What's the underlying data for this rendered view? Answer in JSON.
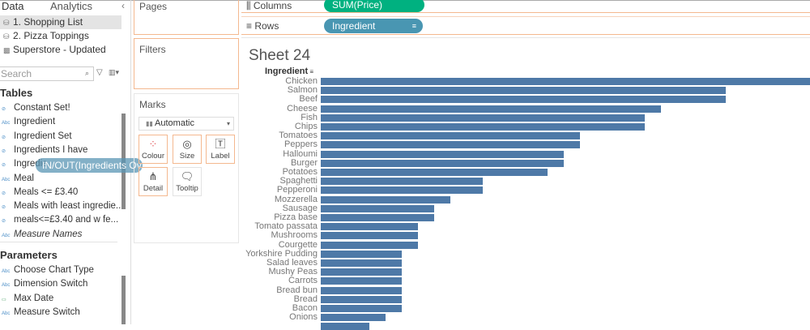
{
  "tabs": {
    "data": "Data",
    "analytics": "Analytics"
  },
  "datasources": [
    {
      "label": "1. Shopping List",
      "selected": true
    },
    {
      "label": "2. Pizza Toppings"
    },
    {
      "label": "Superstore - Updated"
    }
  ],
  "search": {
    "placeholder": "Search"
  },
  "tables": {
    "title": "Tables",
    "fields": [
      {
        "label": "Constant Set!",
        "icon": "set-icon"
      },
      {
        "label": "Ingredient",
        "icon": "abc-icon"
      },
      {
        "label": "Ingredient Set",
        "icon": "set-icon"
      },
      {
        "label": "Ingredients I have",
        "icon": "set-icon"
      },
      {
        "label": "Ingredie",
        "icon": "set-icon"
      },
      {
        "label": "Meal",
        "icon": "abc-icon"
      },
      {
        "label": "Meals <= £3.40",
        "icon": "set-icon"
      },
      {
        "label": "Meals with least ingredie...",
        "icon": "set-icon"
      },
      {
        "label": "meals<=£3.40 and w fe...",
        "icon": "set-icon"
      },
      {
        "label": "Measure Names",
        "icon": "abc-icon"
      }
    ]
  },
  "parameters": {
    "title": "Parameters",
    "fields": [
      {
        "label": "Choose Chart Type",
        "icon": "abc-icon"
      },
      {
        "label": "Dimension Switch",
        "icon": "abc-icon"
      },
      {
        "label": "Max Date",
        "icon": "date-icon"
      },
      {
        "label": "Measure Switch",
        "icon": "abc-icon"
      }
    ]
  },
  "drag_pill": "IN/OUT(Ingredients Ov..",
  "cards": {
    "pages": "Pages",
    "filters": "Filters",
    "marks": "Marks",
    "mark_type": "Automatic",
    "buttons": [
      "Colour",
      "Size",
      "Label",
      "Detail",
      "Tooltip"
    ]
  },
  "shelves": {
    "columns": "Columns",
    "columns_pill": "SUM(Price)",
    "rows": "Rows",
    "rows_pill": "Ingredient"
  },
  "colors": {
    "bar": "#4e79a7",
    "columns_pill": "#00b180",
    "rows_pill": "#4996b2",
    "accent": "#f4b88f"
  },
  "sheet": {
    "title": "Sheet 24",
    "row_header": "Ingredient"
  },
  "chart_data": {
    "type": "bar",
    "orientation": "horizontal",
    "note_values_relative": true,
    "categories": [
      "Chicken",
      "Salmon",
      "Beef",
      "Cheese",
      "Fish",
      "Chips",
      "Tomatoes",
      "Peppers",
      "Halloumi",
      "Burger",
      "Potatoes",
      "Spaghetti",
      "Pepperoni",
      "Mozzerella",
      "Sausage",
      "Pizza base",
      "Tomato passata",
      "Mushrooms",
      "Courgette",
      "Yorkshire Pudding",
      "Salad leaves",
      "Mushy Peas",
      "Carrots",
      "Bread bun",
      "Bread",
      "Bacon",
      "Onions",
      ""
    ],
    "values": [
      31,
      25,
      25,
      21,
      20,
      20,
      16,
      16,
      15,
      15,
      14,
      10,
      10,
      8,
      7,
      7,
      6,
      6,
      6,
      5,
      5,
      5,
      5,
      5,
      5,
      5,
      4,
      3
    ]
  }
}
